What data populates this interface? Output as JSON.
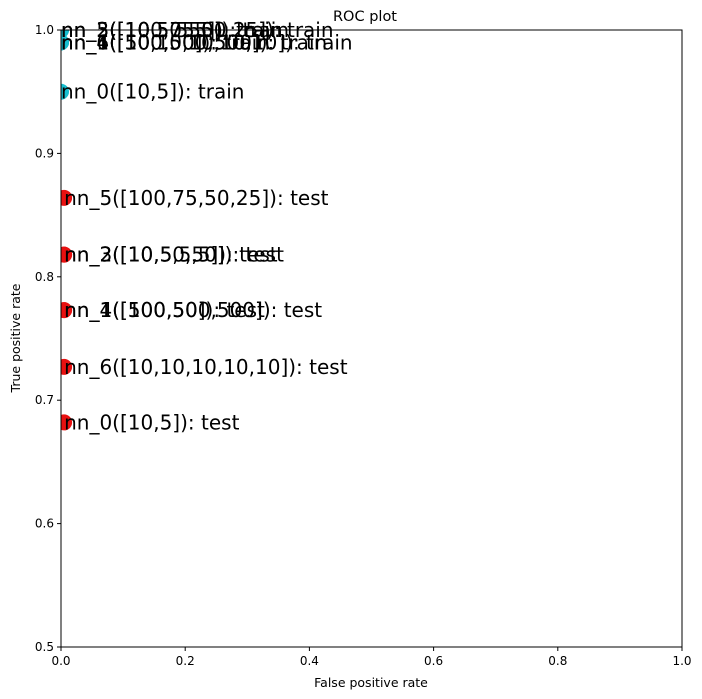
{
  "chart_data": {
    "type": "scatter",
    "title": "ROC plot",
    "xlabel": "False positive rate",
    "ylabel": "True positive rate",
    "xlim": [
      0.0,
      1.0
    ],
    "ylim": [
      0.5,
      1.0
    ],
    "x_ticks": [
      "0.0",
      "0.2",
      "0.4",
      "0.6",
      "0.8",
      "1.0"
    ],
    "y_ticks": [
      "0.5",
      "0.6",
      "0.7",
      "0.8",
      "0.9",
      "1.0"
    ],
    "grid": false,
    "colors": {
      "train": "#17becf",
      "test": "#e81010"
    },
    "series": [
      {
        "name": "train",
        "points": [
          {
            "label": "nn_5([100,75,50,25]): train",
            "x": 0.0,
            "y": 1.0
          },
          {
            "label": "nn_2([10,50,50]): train",
            "x": 0.0,
            "y": 1.0
          },
          {
            "label": "nn_3([10,5,5,5]): train",
            "x": 0.0,
            "y": 1.0
          },
          {
            "label": "nn_1([100,50]): train",
            "x": 0.0,
            "y": 0.99
          },
          {
            "label": "nn_4([500,500,500]): train",
            "x": 0.0,
            "y": 0.99
          },
          {
            "label": "nn_6([10,10,10,10,10]): train",
            "x": 0.0,
            "y": 0.99
          },
          {
            "label": "nn_0([10,5]): train",
            "x": 0.0,
            "y": 0.95
          }
        ]
      },
      {
        "name": "test",
        "points": [
          {
            "label": "nn_5([100,75,50,25]): test",
            "x": 0.005,
            "y": 0.864
          },
          {
            "label": "nn_2([10,50,50]): test",
            "x": 0.005,
            "y": 0.818
          },
          {
            "label": "nn_3([10,5,5,5]): test",
            "x": 0.005,
            "y": 0.818
          },
          {
            "label": "nn_1([100,50]): test",
            "x": 0.005,
            "y": 0.773
          },
          {
            "label": "nn_4([500,500,500]): test",
            "x": 0.005,
            "y": 0.773
          },
          {
            "label": "nn_6([10,10,10,10,10]): test",
            "x": 0.005,
            "y": 0.727
          },
          {
            "label": "nn_0([10,5]): test",
            "x": 0.005,
            "y": 0.682
          }
        ]
      }
    ]
  }
}
